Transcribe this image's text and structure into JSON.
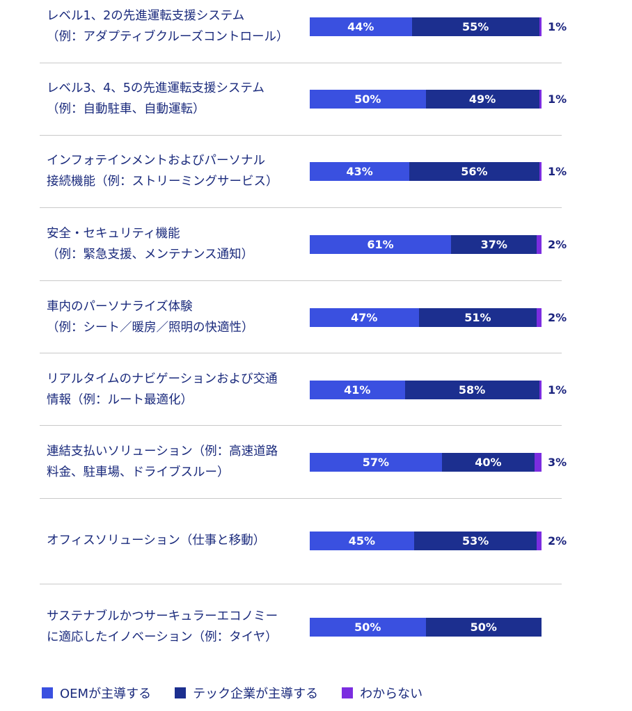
{
  "chart_data": {
    "type": "bar",
    "orientation": "horizontal",
    "stacked": true,
    "percent_suffix": "%",
    "categories": [
      [
        "レベル1、2の先進運転支援システム",
        "（例：アダプティブクルーズコントロール）"
      ],
      [
        "レベル3、4、5の先進運転支援システム",
        "（例：自動駐車、自動運転）"
      ],
      [
        "インフォテインメントおよびパーソナル",
        "接続機能（例：ストリーミングサービス）"
      ],
      [
        "安全・セキュリティ機能",
        "（例：緊急支援、メンテナンス通知）"
      ],
      [
        "車内のパーソナライズ体験",
        "（例：シート／暖房／照明の快適性）"
      ],
      [
        "リアルタイムのナビゲーションおよび交通",
        "情報（例：ルート最適化）"
      ],
      [
        "連結支払いソリューション（例：高速道路",
        "料金、駐車場、ドライブスルー）"
      ],
      [
        "オフィスソリューション（仕事と移動）"
      ],
      [
        "サステナブルかつサーキュラーエコノミー",
        "に適応したイノベーション（例：タイヤ）"
      ]
    ],
    "series": [
      {
        "name": "OEMが主導する",
        "color": "#3a50e0",
        "values": [
          44,
          50,
          43,
          61,
          47,
          41,
          57,
          45,
          50
        ]
      },
      {
        "name": "テック企業が主導する",
        "color": "#1c2f8f",
        "values": [
          55,
          49,
          56,
          37,
          51,
          58,
          40,
          53,
          50
        ]
      },
      {
        "name": "わからない",
        "color": "#7b2de0",
        "values": [
          1,
          1,
          1,
          2,
          2,
          1,
          3,
          2,
          0
        ]
      }
    ],
    "xlim": [
      0,
      100
    ],
    "legend_position": "bottom-left",
    "grid": false
  }
}
